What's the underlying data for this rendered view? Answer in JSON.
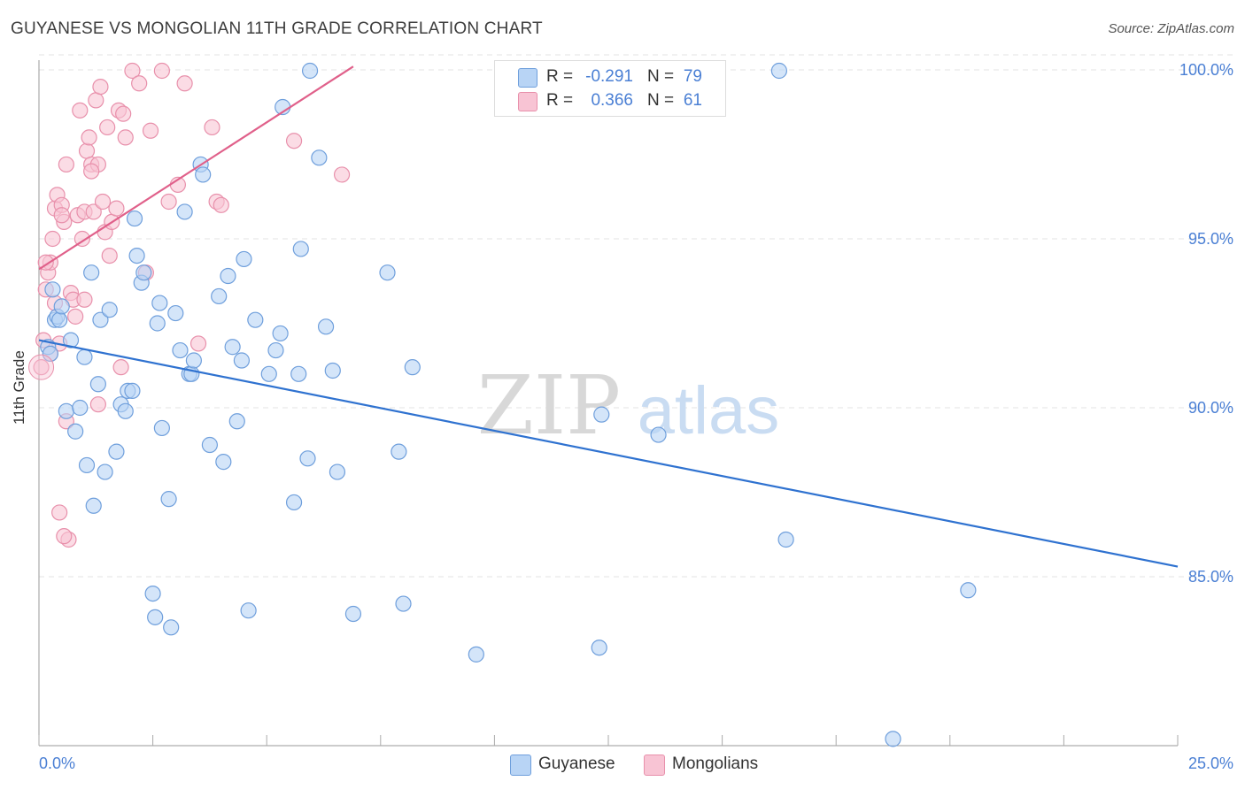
{
  "title": "GUYANESE VS MONGOLIAN 11TH GRADE CORRELATION CHART",
  "source": "Source: ZipAtlas.com",
  "watermark": {
    "zip": "ZIP",
    "atlas": "atlas"
  },
  "legend": {
    "rows": [
      {
        "r_label": "R =",
        "r_value": "-0.291",
        "n_label": "N =",
        "n_value": "79"
      },
      {
        "r_label": "R =",
        "r_value": "0.366",
        "n_label": "N =",
        "n_value": "61"
      }
    ]
  },
  "bottom_legend": {
    "items": [
      {
        "label": "Guyanese"
      },
      {
        "label": "Mongolians"
      }
    ]
  },
  "colors": {
    "guyanese_fill": "#b8d4f5",
    "guyanese_stroke": "#6f9fdc",
    "guyanese_line": "#2f72d0",
    "mongolians_fill": "#f8c4d4",
    "mongolians_stroke": "#e890ab",
    "mongolians_line": "#e0608a",
    "tick_label": "#4a7fd4",
    "grid": "#e3e3e3"
  },
  "chart_data": {
    "type": "scatter",
    "title": "GUYANESE VS MONGOLIAN 11TH GRADE CORRELATION CHART",
    "xlabel": "",
    "ylabel": "11th Grade",
    "xlim": [
      0,
      25
    ],
    "ylim": [
      80,
      101
    ],
    "x_tick_labels": [
      "0.0%",
      "25.0%"
    ],
    "y_ticks": [
      85,
      90,
      95,
      100
    ],
    "y_tick_labels": [
      "85.0%",
      "90.0%",
      "95.0%",
      "100.0%"
    ],
    "grid": true,
    "legend_position": "top-center",
    "series": [
      {
        "name": "Guyanese",
        "R": -0.291,
        "N": 79,
        "trend": {
          "x": [
            0,
            25
          ],
          "y": [
            92.0,
            85.3
          ]
        },
        "points": [
          [
            0.2,
            91.8
          ],
          [
            0.25,
            91.6
          ],
          [
            0.3,
            93.5
          ],
          [
            0.35,
            92.6
          ],
          [
            0.4,
            92.7
          ],
          [
            0.45,
            92.6
          ],
          [
            0.5,
            93.0
          ],
          [
            0.6,
            89.9
          ],
          [
            0.7,
            92.0
          ],
          [
            0.8,
            89.3
          ],
          [
            0.9,
            90.0
          ],
          [
            1.0,
            91.5
          ],
          [
            1.05,
            88.3
          ],
          [
            1.15,
            94.0
          ],
          [
            1.2,
            87.1
          ],
          [
            1.3,
            90.7
          ],
          [
            1.35,
            92.6
          ],
          [
            1.45,
            88.1
          ],
          [
            1.55,
            92.9
          ],
          [
            1.7,
            88.7
          ],
          [
            1.8,
            90.1
          ],
          [
            1.9,
            89.9
          ],
          [
            1.95,
            90.5
          ],
          [
            2.05,
            90.5
          ],
          [
            2.1,
            95.6
          ],
          [
            2.15,
            94.5
          ],
          [
            2.25,
            93.7
          ],
          [
            2.3,
            94.0
          ],
          [
            2.5,
            84.5
          ],
          [
            2.55,
            83.8
          ],
          [
            2.6,
            92.5
          ],
          [
            2.65,
            93.1
          ],
          [
            2.7,
            89.4
          ],
          [
            2.85,
            87.3
          ],
          [
            2.9,
            83.5
          ],
          [
            3.0,
            92.8
          ],
          [
            3.1,
            91.7
          ],
          [
            3.2,
            95.8
          ],
          [
            3.3,
            91.0
          ],
          [
            3.35,
            91.0
          ],
          [
            3.4,
            91.4
          ],
          [
            3.55,
            97.2
          ],
          [
            3.6,
            96.9
          ],
          [
            3.75,
            88.9
          ],
          [
            3.95,
            93.3
          ],
          [
            4.05,
            88.4
          ],
          [
            4.15,
            93.9
          ],
          [
            4.25,
            91.8
          ],
          [
            4.35,
            89.6
          ],
          [
            4.45,
            91.4
          ],
          [
            4.5,
            94.4
          ],
          [
            4.6,
            84.0
          ],
          [
            4.75,
            92.6
          ],
          [
            5.05,
            91.0
          ],
          [
            5.2,
            91.7
          ],
          [
            5.3,
            92.2
          ],
          [
            5.35,
            98.9
          ],
          [
            5.6,
            87.2
          ],
          [
            5.7,
            91.0
          ],
          [
            5.75,
            94.7
          ],
          [
            5.9,
            88.5
          ],
          [
            6.15,
            97.4
          ],
          [
            6.3,
            92.4
          ],
          [
            6.45,
            91.1
          ],
          [
            6.55,
            88.1
          ],
          [
            6.9,
            83.9
          ],
          [
            7.65,
            94.0
          ],
          [
            7.9,
            88.7
          ],
          [
            8.0,
            84.2
          ],
          [
            8.2,
            91.2
          ],
          [
            5.95,
            100.0
          ],
          [
            9.6,
            82.7
          ],
          [
            12.35,
            89.8
          ],
          [
            12.3,
            82.9
          ],
          [
            13.6,
            89.2
          ],
          [
            16.25,
            100.0
          ],
          [
            16.4,
            86.1
          ],
          [
            20.4,
            84.6
          ],
          [
            18.75,
            80.2
          ]
        ]
      },
      {
        "name": "Mongolians",
        "R": 0.366,
        "N": 61,
        "trend": {
          "x": [
            0,
            6.9
          ],
          "y": [
            94.1,
            100.1
          ]
        },
        "points": [
          [
            0.05,
            91.2
          ],
          [
            0.1,
            92.0
          ],
          [
            0.15,
            93.5
          ],
          [
            0.2,
            94.0
          ],
          [
            0.25,
            94.3
          ],
          [
            0.25,
            91.6
          ],
          [
            0.3,
            95.0
          ],
          [
            0.35,
            95.9
          ],
          [
            0.4,
            96.3
          ],
          [
            0.45,
            91.9
          ],
          [
            0.5,
            96.0
          ],
          [
            0.55,
            95.5
          ],
          [
            0.6,
            97.2
          ],
          [
            0.65,
            86.1
          ],
          [
            0.7,
            93.4
          ],
          [
            0.75,
            93.2
          ],
          [
            0.8,
            92.7
          ],
          [
            0.85,
            95.7
          ],
          [
            0.9,
            98.8
          ],
          [
            0.95,
            95.0
          ],
          [
            1.0,
            95.8
          ],
          [
            1.05,
            97.6
          ],
          [
            1.1,
            98.0
          ],
          [
            1.15,
            97.2
          ],
          [
            1.2,
            95.8
          ],
          [
            1.25,
            99.1
          ],
          [
            1.3,
            97.2
          ],
          [
            1.35,
            99.5
          ],
          [
            1.4,
            96.1
          ],
          [
            1.45,
            95.2
          ],
          [
            1.5,
            98.3
          ],
          [
            1.55,
            94.5
          ],
          [
            1.6,
            95.5
          ],
          [
            1.7,
            95.9
          ],
          [
            1.75,
            98.8
          ],
          [
            1.8,
            91.2
          ],
          [
            1.85,
            98.7
          ],
          [
            1.9,
            98.0
          ],
          [
            2.05,
            100.0
          ],
          [
            2.2,
            99.6
          ],
          [
            2.35,
            94.0
          ],
          [
            2.45,
            98.2
          ],
          [
            2.7,
            100.0
          ],
          [
            2.85,
            96.1
          ],
          [
            3.05,
            96.6
          ],
          [
            3.2,
            99.6
          ],
          [
            3.5,
            91.9
          ],
          [
            3.8,
            98.3
          ],
          [
            3.9,
            96.1
          ],
          [
            4.0,
            96.0
          ],
          [
            5.6,
            97.9
          ],
          [
            6.65,
            96.9
          ],
          [
            0.45,
            86.9
          ],
          [
            0.55,
            86.2
          ],
          [
            1.3,
            90.1
          ],
          [
            0.6,
            89.6
          ],
          [
            0.35,
            93.1
          ],
          [
            0.15,
            94.3
          ],
          [
            1.0,
            93.2
          ],
          [
            0.5,
            95.7
          ],
          [
            1.15,
            97.0
          ]
        ]
      }
    ]
  }
}
